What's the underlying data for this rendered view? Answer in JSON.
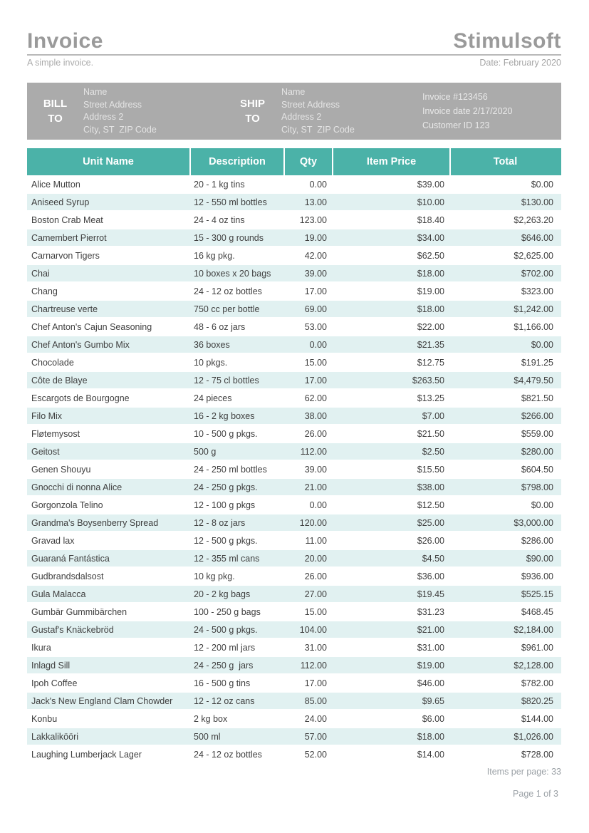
{
  "page": {
    "title": "Invoice",
    "brand": "Stimulsoft",
    "subtitle": "A simple invoice.",
    "date_label": "Date: February 2020",
    "items_per_page": "Items per page: 33",
    "page_number": "Page 1 of 3"
  },
  "billing": {
    "bill_to_label": "BILL TO",
    "ship_to_label": "SHIP TO",
    "bill_to_address": [
      "Name",
      "Street Address",
      "Address 2",
      "City, ST  ZIP Code"
    ],
    "ship_to_address": [
      "Name",
      "Street Address",
      "Address 2",
      "City, ST  ZIP Code"
    ],
    "invoice_meta": [
      "Invoice #123456",
      "Invoice date 2/17/2020",
      "Customer ID 123"
    ]
  },
  "table": {
    "columns": [
      "Unit Name",
      "Description",
      "Qty",
      "Item Price",
      "Total"
    ],
    "rows": [
      [
        "Alice Mutton",
        "20 - 1 kg tins",
        "0.00",
        "$39.00",
        "$0.00"
      ],
      [
        "Aniseed Syrup",
        "12 - 550 ml bottles",
        "13.00",
        "$10.00",
        "$130.00"
      ],
      [
        "Boston Crab Meat",
        "24 - 4 oz tins",
        "123.00",
        "$18.40",
        "$2,263.20"
      ],
      [
        "Camembert Pierrot",
        "15 - 300 g rounds",
        "19.00",
        "$34.00",
        "$646.00"
      ],
      [
        "Carnarvon Tigers",
        "16 kg pkg.",
        "42.00",
        "$62.50",
        "$2,625.00"
      ],
      [
        "Chai",
        "10 boxes x 20 bags",
        "39.00",
        "$18.00",
        "$702.00"
      ],
      [
        "Chang",
        "24 - 12 oz bottles",
        "17.00",
        "$19.00",
        "$323.00"
      ],
      [
        "Chartreuse verte",
        "750 cc per bottle",
        "69.00",
        "$18.00",
        "$1,242.00"
      ],
      [
        "Chef Anton's Cajun Seasoning",
        "48 - 6 oz jars",
        "53.00",
        "$22.00",
        "$1,166.00"
      ],
      [
        "Chef Anton's Gumbo Mix",
        "36 boxes",
        "0.00",
        "$21.35",
        "$0.00"
      ],
      [
        "Chocolade",
        "10 pkgs.",
        "15.00",
        "$12.75",
        "$191.25"
      ],
      [
        "Côte de Blaye",
        "12 - 75 cl bottles",
        "17.00",
        "$263.50",
        "$4,479.50"
      ],
      [
        "Escargots de Bourgogne",
        "24 pieces",
        "62.00",
        "$13.25",
        "$821.50"
      ],
      [
        "Filo Mix",
        "16 - 2 kg boxes",
        "38.00",
        "$7.00",
        "$266.00"
      ],
      [
        "Fløtemysost",
        "10 - 500 g pkgs.",
        "26.00",
        "$21.50",
        "$559.00"
      ],
      [
        "Geitost",
        "500 g",
        "112.00",
        "$2.50",
        "$280.00"
      ],
      [
        "Genen Shouyu",
        "24 - 250 ml bottles",
        "39.00",
        "$15.50",
        "$604.50"
      ],
      [
        "Gnocchi di nonna Alice",
        "24 - 250 g pkgs.",
        "21.00",
        "$38.00",
        "$798.00"
      ],
      [
        "Gorgonzola Telino",
        "12 - 100 g pkgs",
        "0.00",
        "$12.50",
        "$0.00"
      ],
      [
        "Grandma's Boysenberry Spread",
        "12 - 8 oz jars",
        "120.00",
        "$25.00",
        "$3,000.00"
      ],
      [
        "Gravad lax",
        "12 - 500 g pkgs.",
        "11.00",
        "$26.00",
        "$286.00"
      ],
      [
        "Guaraná Fantástica",
        "12 - 355 ml cans",
        "20.00",
        "$4.50",
        "$90.00"
      ],
      [
        "Gudbrandsdalsost",
        "10 kg pkg.",
        "26.00",
        "$36.00",
        "$936.00"
      ],
      [
        "Gula Malacca",
        "20 - 2 kg bags",
        "27.00",
        "$19.45",
        "$525.15"
      ],
      [
        "Gumbär Gummibärchen",
        "100 - 250 g bags",
        "15.00",
        "$31.23",
        "$468.45"
      ],
      [
        "Gustaf's Knäckebröd",
        "24 - 500 g pkgs.",
        "104.00",
        "$21.00",
        "$2,184.00"
      ],
      [
        "Ikura",
        "12 - 200 ml jars",
        "31.00",
        "$31.00",
        "$961.00"
      ],
      [
        "Inlagd Sill",
        "24 - 250 g  jars",
        "112.00",
        "$19.00",
        "$2,128.00"
      ],
      [
        "Ipoh Coffee",
        "16 - 500 g tins",
        "17.00",
        "$46.00",
        "$782.00"
      ],
      [
        "Jack's New England Clam Chowder",
        "12 - 12 oz cans",
        "85.00",
        "$9.65",
        "$820.25"
      ],
      [
        "Konbu",
        "2 kg box",
        "24.00",
        "$6.00",
        "$144.00"
      ],
      [
        "Lakkalikööri",
        "500 ml",
        "57.00",
        "$18.00",
        "$1,026.00"
      ],
      [
        "Laughing Lumberjack Lager",
        "24 - 12 oz bottles",
        "52.00",
        "$14.00",
        "$728.00"
      ]
    ]
  },
  "colors": {
    "accent_teal": "#4bb2a8",
    "row_alt": "#e1f1f1",
    "band_gray": "#ababab",
    "title_gray": "#9a9a9a"
  }
}
